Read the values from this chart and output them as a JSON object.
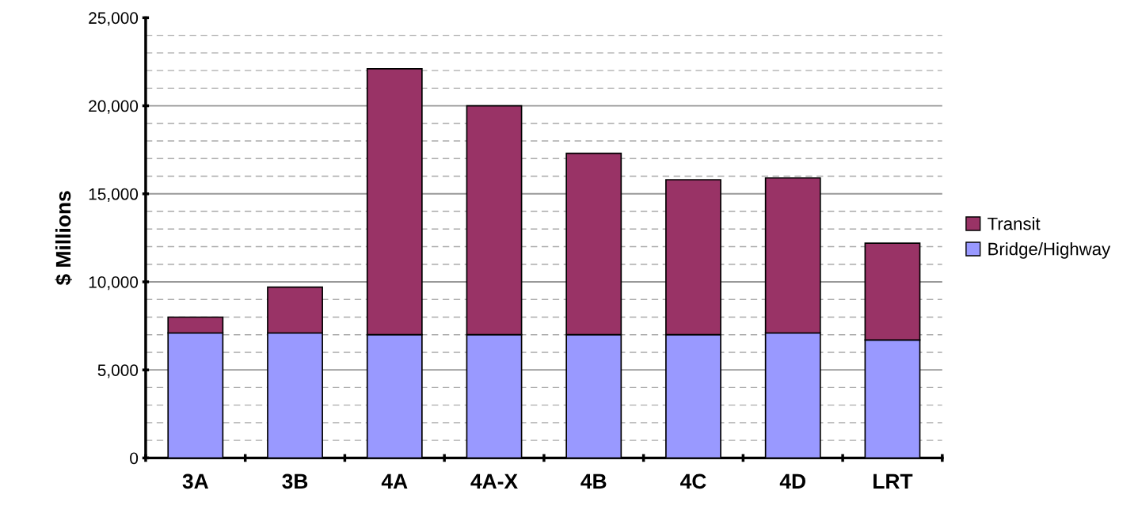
{
  "chart_data": {
    "type": "bar",
    "stacked": true,
    "ylabel": "$ Millions",
    "categories": [
      "3A",
      "3B",
      "4A",
      "4A-X",
      "4B",
      "4C",
      "4D",
      "LRT"
    ],
    "series": [
      {
        "name": "Bridge/Highway",
        "color": "#9999ff",
        "values": [
          7100,
          7100,
          7000,
          7000,
          7000,
          7000,
          7100,
          6700
        ]
      },
      {
        "name": "Transit",
        "color": "#993366",
        "values": [
          900,
          2600,
          15100,
          13000,
          10300,
          8800,
          8800,
          5500
        ]
      }
    ],
    "ylim": [
      0,
      25000
    ],
    "yticks": [
      {
        "value": 0,
        "label": "0"
      },
      {
        "value": 5000,
        "label": "5,000"
      },
      {
        "value": 10000,
        "label": "10,000"
      },
      {
        "value": 15000,
        "label": "15,000"
      },
      {
        "value": 20000,
        "label": "20,000"
      },
      {
        "value": 25000,
        "label": "25,000"
      }
    ],
    "grid": "y",
    "legend": "right"
  }
}
